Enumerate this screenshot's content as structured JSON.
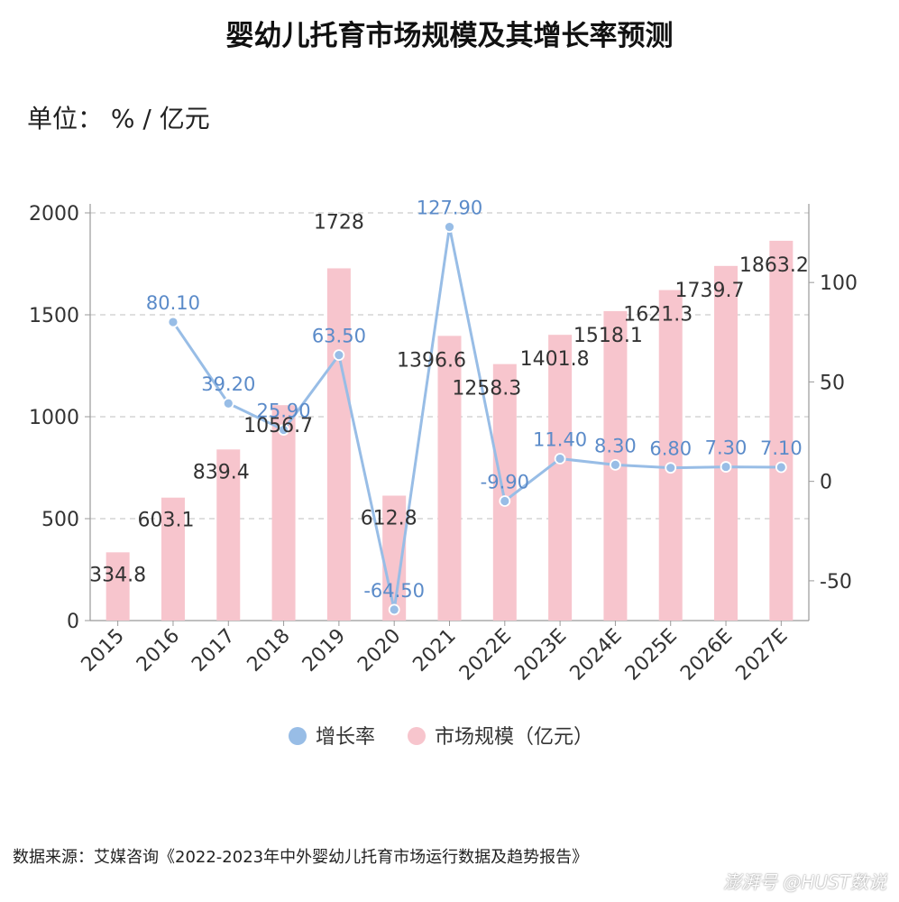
{
  "title": "婴幼儿托育市场规模及其增长率预测",
  "unit_label": "单位： % / 亿元",
  "source_text": "数据来源：艾媒咨询《2022-2023年中外婴幼儿托育市场运行数据及趋势报告》",
  "watermark_text": "澎湃号 @HUST数说",
  "colors": {
    "bar": "#f7c5cd",
    "line": "#98bde6",
    "line_label": "#5b8bc9",
    "bar_label": "#333333",
    "grid": "#cccccc",
    "axis": "#999999"
  },
  "chart_data": {
    "type": "bar+line",
    "categories": [
      "2015",
      "2016",
      "2017",
      "2018",
      "2019",
      "2020",
      "2021",
      "2022E",
      "2023E",
      "2024E",
      "2025E",
      "2026E",
      "2027E"
    ],
    "series": [
      {
        "name": "市场规模（亿元）",
        "type": "bar",
        "axis": "left",
        "values": [
          334.8,
          603.1,
          839.4,
          1056.7,
          1728,
          612.8,
          1396.6,
          1258.3,
          1401.8,
          1518.1,
          1621.3,
          1739.7,
          1863.2
        ],
        "labels": [
          "334.8",
          "603.1",
          "839.4",
          "1056.7",
          "1728",
          "612.8",
          "1396.6",
          "1258.3",
          "1401.8",
          "1518.1",
          "1621.3",
          "1739.7",
          "1863.2"
        ]
      },
      {
        "name": "增长率",
        "type": "line",
        "axis": "right",
        "values": [
          null,
          80.1,
          39.2,
          25.9,
          63.5,
          -64.5,
          127.9,
          -9.9,
          11.4,
          8.3,
          6.8,
          7.3,
          7.1
        ],
        "labels": [
          "",
          "80.10",
          "39.20",
          "25.90",
          "63.50",
          "-64.50",
          "127.90",
          "-9.90",
          "11.40",
          "8.30",
          "6.80",
          "7.30",
          "7.10"
        ]
      }
    ],
    "y_left": {
      "min": 0,
      "max": 2000,
      "ticks": [
        0,
        500,
        1000,
        1500,
        2000
      ]
    },
    "y_right": {
      "min": -70,
      "max": 135,
      "ticks": [
        -50,
        0,
        50,
        100
      ]
    },
    "legend": [
      "增长率",
      "市场规模（亿元）"
    ],
    "legend_position": "bottom-center",
    "grid": true
  }
}
